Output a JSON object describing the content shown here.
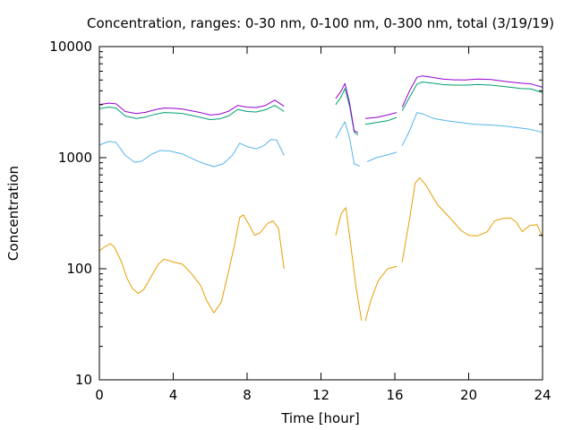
{
  "chart_data": {
    "type": "line",
    "title": "Concentration, ranges: 0-30 nm, 0-100 nm, 0-300 nm, total (3/19/19)",
    "xlabel": "Time [hour]",
    "ylabel": "Concentration",
    "xlim": [
      0,
      24
    ],
    "ylim": [
      10,
      10000
    ],
    "yscale": "log",
    "grid": false,
    "x_ticks": [
      0,
      4,
      8,
      12,
      16,
      20,
      24
    ],
    "x_tick_labels": [
      "0",
      "4",
      "8",
      "12",
      "16",
      "20",
      "24"
    ],
    "y_ticks": [
      10,
      100,
      1000,
      10000
    ],
    "y_tick_labels": [
      "10",
      "100",
      "1000",
      "10000"
    ],
    "series": [
      {
        "color": "#e69f00",
        "segments": [
          [
            [
              0,
              145
            ],
            [
              0.3,
              158
            ],
            [
              0.6,
              168
            ],
            [
              0.8,
              158
            ],
            [
              1.2,
              115
            ],
            [
              1.5,
              82
            ],
            [
              1.8,
              66
            ],
            [
              2.1,
              60
            ],
            [
              2.4,
              65
            ],
            [
              2.8,
              85
            ],
            [
              3.2,
              110
            ],
            [
              3.5,
              122
            ],
            [
              4,
              115
            ],
            [
              4.5,
              110
            ],
            [
              5,
              90
            ],
            [
              5.5,
              70
            ],
            [
              5.8,
              52
            ],
            [
              6.2,
              40
            ],
            [
              6.6,
              50
            ],
            [
              7,
              95
            ],
            [
              7.3,
              160
            ],
            [
              7.6,
              290
            ],
            [
              7.8,
              305
            ],
            [
              8.1,
              250
            ],
            [
              8.4,
              200
            ],
            [
              8.7,
              210
            ],
            [
              9.1,
              255
            ],
            [
              9.4,
              270
            ],
            [
              9.7,
              230
            ],
            [
              10,
              100
            ]
          ],
          [
            [
              12.8,
              200
            ],
            [
              13.1,
              315
            ],
            [
              13.35,
              355
            ],
            [
              13.6,
              170
            ],
            [
              13.9,
              68
            ],
            [
              14.2,
              34
            ]
          ],
          [
            [
              14.4,
              34
            ],
            [
              14.7,
              52
            ],
            [
              15.1,
              78
            ],
            [
              15.6,
              100
            ],
            [
              16.1,
              105
            ]
          ],
          [
            [
              16.4,
              115
            ],
            [
              16.8,
              280
            ],
            [
              17.1,
              590
            ],
            [
              17.35,
              660
            ],
            [
              17.7,
              560
            ],
            [
              18.3,
              380
            ],
            [
              19,
              285
            ],
            [
              19.6,
              220
            ],
            [
              20,
              200
            ],
            [
              20.5,
              198
            ],
            [
              21,
              215
            ],
            [
              21.4,
              270
            ],
            [
              21.9,
              285
            ],
            [
              22.3,
              285
            ],
            [
              22.6,
              260
            ],
            [
              22.9,
              215
            ],
            [
              23.3,
              245
            ],
            [
              23.7,
              250
            ],
            [
              24,
              192
            ]
          ]
        ]
      },
      {
        "color": "#56b4e9",
        "segments": [
          [
            [
              0,
              1300
            ],
            [
              0.5,
              1400
            ],
            [
              0.9,
              1370
            ],
            [
              1.4,
              1050
            ],
            [
              1.9,
              910
            ],
            [
              2.3,
              930
            ],
            [
              2.8,
              1070
            ],
            [
              3.3,
              1160
            ],
            [
              3.8,
              1150
            ],
            [
              4.5,
              1080
            ],
            [
              5.2,
              950
            ],
            [
              5.7,
              880
            ],
            [
              6.2,
              830
            ],
            [
              6.7,
              880
            ],
            [
              7.2,
              1050
            ],
            [
              7.6,
              1350
            ],
            [
              8,
              1260
            ],
            [
              8.5,
              1200
            ],
            [
              8.9,
              1280
            ],
            [
              9.3,
              1460
            ],
            [
              9.6,
              1440
            ],
            [
              10,
              1050
            ]
          ],
          [
            [
              12.8,
              1500
            ],
            [
              13.1,
              1850
            ],
            [
              13.3,
              2100
            ],
            [
              13.55,
              1500
            ],
            [
              13.8,
              880
            ],
            [
              14.1,
              840
            ]
          ],
          [
            [
              14.5,
              920
            ],
            [
              15,
              1000
            ],
            [
              15.6,
              1060
            ],
            [
              16.1,
              1120
            ]
          ],
          [
            [
              16.4,
              1280
            ],
            [
              16.8,
              1750
            ],
            [
              17.2,
              2550
            ],
            [
              17.5,
              2480
            ],
            [
              18.1,
              2250
            ],
            [
              18.8,
              2150
            ],
            [
              19.5,
              2080
            ],
            [
              20.3,
              2000
            ],
            [
              21.2,
              1970
            ],
            [
              22,
              1920
            ],
            [
              22.7,
              1860
            ],
            [
              23.3,
              1800
            ],
            [
              24,
              1690
            ]
          ]
        ]
      },
      {
        "color": "#009e73",
        "segments": [
          [
            [
              0,
              2760
            ],
            [
              0.5,
              2850
            ],
            [
              0.9,
              2800
            ],
            [
              1.4,
              2370
            ],
            [
              2,
              2250
            ],
            [
              2.5,
              2320
            ],
            [
              3,
              2450
            ],
            [
              3.5,
              2550
            ],
            [
              4,
              2530
            ],
            [
              4.5,
              2500
            ],
            [
              5,
              2400
            ],
            [
              5.5,
              2300
            ],
            [
              6,
              2200
            ],
            [
              6.5,
              2230
            ],
            [
              7,
              2380
            ],
            [
              7.5,
              2720
            ],
            [
              8,
              2600
            ],
            [
              8.5,
              2580
            ],
            [
              9,
              2700
            ],
            [
              9.5,
              2950
            ],
            [
              10,
              2600
            ]
          ],
          [
            [
              12.8,
              3000
            ],
            [
              13.1,
              3550
            ],
            [
              13.3,
              4200
            ],
            [
              13.55,
              2900
            ],
            [
              13.8,
              1700
            ],
            [
              14,
              1600
            ]
          ],
          [
            [
              14.4,
              2000
            ],
            [
              15,
              2070
            ],
            [
              15.6,
              2150
            ],
            [
              16.1,
              2300
            ]
          ],
          [
            [
              16.4,
              2650
            ],
            [
              16.8,
              3500
            ],
            [
              17.2,
              4600
            ],
            [
              17.5,
              4800
            ],
            [
              18,
              4700
            ],
            [
              18.6,
              4550
            ],
            [
              19.2,
              4500
            ],
            [
              19.8,
              4500
            ],
            [
              20.5,
              4550
            ],
            [
              21.2,
              4500
            ],
            [
              22,
              4350
            ],
            [
              22.8,
              4200
            ],
            [
              23.4,
              4150
            ],
            [
              24,
              3850
            ]
          ]
        ]
      },
      {
        "color": "#9400d3",
        "segments": [
          [
            [
              0,
              3000
            ],
            [
              0.5,
              3100
            ],
            [
              0.9,
              3050
            ],
            [
              1.4,
              2600
            ],
            [
              2,
              2500
            ],
            [
              2.5,
              2560
            ],
            [
              3,
              2700
            ],
            [
              3.5,
              2800
            ],
            [
              4,
              2780
            ],
            [
              4.5,
              2740
            ],
            [
              5,
              2640
            ],
            [
              5.5,
              2540
            ],
            [
              6,
              2420
            ],
            [
              6.5,
              2460
            ],
            [
              7,
              2620
            ],
            [
              7.5,
              2950
            ],
            [
              8,
              2850
            ],
            [
              8.5,
              2830
            ],
            [
              9,
              2950
            ],
            [
              9.5,
              3300
            ],
            [
              10,
              2900
            ]
          ],
          [
            [
              12.8,
              3400
            ],
            [
              13.1,
              4000
            ],
            [
              13.3,
              4650
            ],
            [
              13.55,
              3100
            ],
            [
              13.8,
              1750
            ],
            [
              14,
              1680
            ]
          ],
          [
            [
              14.4,
              2250
            ],
            [
              15,
              2300
            ],
            [
              15.6,
              2420
            ],
            [
              16.1,
              2550
            ]
          ],
          [
            [
              16.4,
              2850
            ],
            [
              16.8,
              4000
            ],
            [
              17.2,
              5300
            ],
            [
              17.5,
              5450
            ],
            [
              18,
              5300
            ],
            [
              18.6,
              5100
            ],
            [
              19.2,
              5020
            ],
            [
              19.8,
              5000
            ],
            [
              20.5,
              5100
            ],
            [
              21.2,
              5050
            ],
            [
              22,
              4850
            ],
            [
              22.8,
              4700
            ],
            [
              23.4,
              4600
            ],
            [
              24,
              4300
            ]
          ]
        ]
      }
    ]
  }
}
